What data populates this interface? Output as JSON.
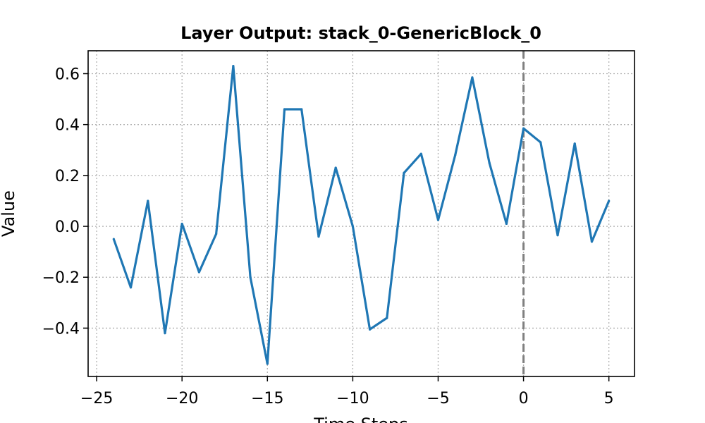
{
  "chart_data": {
    "type": "line",
    "title": "Layer Output: stack_0-GenericBlock_0",
    "xlabel": "Time Steps",
    "ylabel": "Value",
    "xlim": [
      -25.5,
      6.5
    ],
    "ylim": [
      -0.59,
      0.69
    ],
    "xticks": [
      -25,
      -20,
      -15,
      -10,
      -5,
      0,
      5
    ],
    "xtick_labels": [
      "−25",
      "−20",
      "−15",
      "−10",
      "−5",
      "0",
      "5"
    ],
    "yticks": [
      -0.4,
      -0.2,
      0.0,
      0.2,
      0.4,
      0.6
    ],
    "ytick_labels": [
      "−0.4",
      "−0.2",
      "0.0",
      "0.2",
      "0.4",
      "0.6"
    ],
    "grid": true,
    "vline_x": 0,
    "line_color": "#1f77b4",
    "vline_color": "#808080",
    "series": [
      {
        "x": [
          -24,
          -23,
          -22,
          -21,
          -20,
          -19,
          -18,
          -17,
          -16,
          -15,
          -14,
          -13,
          -12,
          -11,
          -10,
          -9,
          -8,
          -7,
          -6,
          -5,
          -4,
          -3,
          -2,
          -1,
          0,
          1,
          2,
          3,
          4,
          5
        ],
        "values": [
          -0.05,
          -0.24,
          0.1,
          -0.42,
          0.01,
          -0.18,
          -0.03,
          0.63,
          -0.2,
          -0.54,
          0.46,
          0.46,
          -0.04,
          0.23,
          0.0,
          -0.405,
          -0.36,
          0.21,
          0.285,
          0.025,
          0.28,
          0.585,
          0.25,
          0.01,
          0.385,
          0.33,
          -0.035,
          0.325,
          -0.06,
          0.1
        ]
      }
    ]
  }
}
